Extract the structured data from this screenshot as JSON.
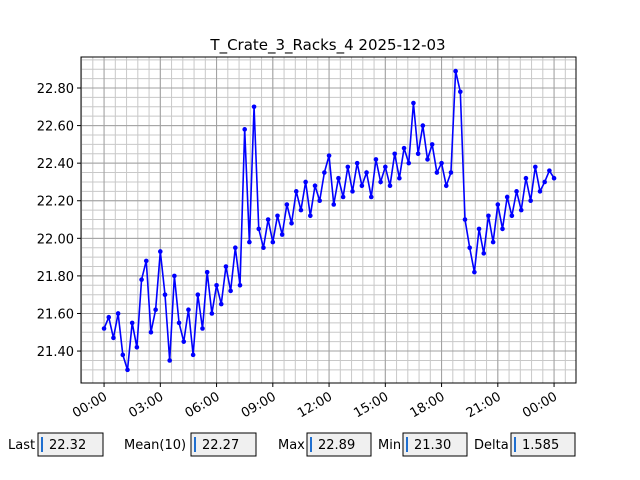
{
  "chart_data": {
    "type": "line",
    "title": "T_Crate_3_Racks_4 2025-12-03",
    "x": [
      0,
      0.25,
      0.5,
      0.75,
      1,
      1.25,
      1.5,
      1.75,
      2,
      2.25,
      2.5,
      2.75,
      3,
      3.25,
      3.5,
      3.75,
      4,
      4.25,
      4.5,
      4.75,
      5,
      5.25,
      5.5,
      5.75,
      6,
      6.25,
      6.5,
      6.75,
      7,
      7.25,
      7.5,
      7.75,
      8,
      8.25,
      8.5,
      8.75,
      9,
      9.25,
      9.5,
      9.75,
      10,
      10.25,
      10.5,
      10.75,
      11,
      11.25,
      11.5,
      11.75,
      12,
      12.25,
      12.5,
      12.75,
      13,
      13.25,
      13.5,
      13.75,
      14,
      14.25,
      14.5,
      14.75,
      15,
      15.25,
      15.5,
      15.75,
      16,
      16.25,
      16.5,
      16.75,
      17,
      17.25,
      17.5,
      17.75,
      18,
      18.25,
      18.5,
      18.75,
      19,
      19.25,
      19.5,
      19.75,
      20,
      20.25,
      20.5,
      20.75,
      21,
      21.25,
      21.5,
      21.75,
      22,
      22.25,
      22.5,
      22.75,
      23,
      23.25,
      23.5,
      23.75,
      24
    ],
    "series": [
      {
        "color": "#0000ff",
        "values": [
          21.52,
          21.58,
          21.47,
          21.6,
          21.38,
          21.3,
          21.55,
          21.42,
          21.78,
          21.88,
          21.5,
          21.62,
          21.93,
          21.7,
          21.35,
          21.8,
          21.55,
          21.45,
          21.62,
          21.38,
          21.7,
          21.52,
          21.82,
          21.6,
          21.75,
          21.65,
          21.85,
          21.72,
          21.95,
          21.75,
          22.58,
          21.98,
          22.7,
          22.05,
          21.95,
          22.1,
          21.98,
          22.12,
          22.02,
          22.18,
          22.08,
          22.25,
          22.15,
          22.3,
          22.12,
          22.28,
          22.2,
          22.35,
          22.44,
          22.18,
          22.32,
          22.22,
          22.38,
          22.25,
          22.4,
          22.28,
          22.35,
          22.22,
          22.42,
          22.3,
          22.38,
          22.28,
          22.45,
          22.32,
          22.48,
          22.4,
          22.72,
          22.45,
          22.6,
          22.42,
          22.5,
          22.35,
          22.4,
          22.28,
          22.35,
          22.89,
          22.78,
          22.1,
          21.95,
          21.82,
          22.05,
          21.92,
          22.12,
          21.98,
          22.18,
          22.05,
          22.22,
          22.12,
          22.25,
          22.15,
          22.32,
          22.2,
          22.38,
          22.25,
          22.3,
          22.36,
          22.32
        ]
      }
    ],
    "xlim": [
      -1.23,
      25.17
    ],
    "xticks": [
      {
        "value": 0,
        "label": "00:00"
      },
      {
        "value": 3,
        "label": "03:00"
      },
      {
        "value": 6,
        "label": "06:00"
      },
      {
        "value": 9,
        "label": "09:00"
      },
      {
        "value": 12,
        "label": "12:00"
      },
      {
        "value": 15,
        "label": "15:00"
      },
      {
        "value": 18,
        "label": "18:00"
      },
      {
        "value": 21,
        "label": "21:00"
      },
      {
        "value": 24,
        "label": "00:00"
      }
    ],
    "ylim": [
      21.23,
      22.965
    ],
    "yticks": [
      {
        "value": 21.4,
        "label": "21.40"
      },
      {
        "value": 21.6,
        "label": "21.60"
      },
      {
        "value": 21.8,
        "label": "21.80"
      },
      {
        "value": 22.0,
        "label": "22.00"
      },
      {
        "value": 22.2,
        "label": "22.20"
      },
      {
        "value": 22.4,
        "label": "22.40"
      },
      {
        "value": 22.6,
        "label": "22.60"
      },
      {
        "value": 22.8,
        "label": "22.80"
      }
    ],
    "grid": true
  },
  "stats": [
    {
      "label": "Last",
      "value": "22.32"
    },
    {
      "label": "Mean(10)",
      "value": "22.27"
    },
    {
      "label": "Max",
      "value": "22.89"
    },
    {
      "label": "Min",
      "value": "21.30"
    },
    {
      "label": "Delta",
      "value": "1.585"
    }
  ]
}
